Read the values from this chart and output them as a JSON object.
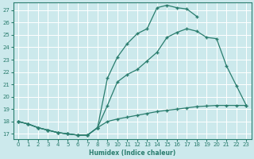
{
  "xlabel": "Humidex (Indice chaleur)",
  "bg_color": "#cce9ec",
  "grid_color": "#ffffff",
  "line_color": "#2a7d6e",
  "xlim": [
    -0.5,
    23.5
  ],
  "ylim": [
    16.6,
    27.6
  ],
  "xticks": [
    0,
    1,
    2,
    3,
    4,
    5,
    6,
    7,
    8,
    9,
    10,
    11,
    12,
    13,
    14,
    15,
    16,
    17,
    18,
    19,
    20,
    21,
    22,
    23
  ],
  "yticks": [
    17,
    18,
    19,
    20,
    21,
    22,
    23,
    24,
    25,
    26,
    27
  ],
  "line1": {
    "x": [
      0,
      1,
      2,
      3,
      4,
      5,
      6,
      7,
      8,
      9,
      10,
      11,
      12,
      13,
      14,
      15,
      16,
      17,
      18
    ],
    "y": [
      18.0,
      17.8,
      17.5,
      17.3,
      17.1,
      17.0,
      16.9,
      16.9,
      17.5,
      21.5,
      23.2,
      24.3,
      25.1,
      25.5,
      27.2,
      27.4,
      27.2,
      27.1,
      26.5
    ]
  },
  "line2": {
    "x": [
      0,
      1,
      2,
      3,
      4,
      5,
      6,
      7,
      8,
      9,
      10,
      11,
      12,
      13,
      14,
      15,
      16,
      17,
      18,
      19,
      20,
      21,
      22,
      23
    ],
    "y": [
      18.0,
      17.8,
      17.5,
      17.3,
      17.1,
      17.0,
      16.9,
      16.9,
      17.5,
      19.3,
      21.2,
      21.8,
      22.2,
      22.9,
      23.6,
      24.8,
      25.2,
      25.5,
      25.3,
      24.8,
      24.7,
      22.5,
      20.9,
      19.3
    ]
  },
  "line3": {
    "x": [
      0,
      1,
      2,
      3,
      4,
      5,
      6,
      7,
      8,
      9,
      10,
      11,
      12,
      13,
      14,
      15,
      16,
      17,
      18,
      19,
      20,
      21,
      22,
      23
    ],
    "y": [
      18.0,
      17.8,
      17.5,
      17.3,
      17.1,
      17.0,
      16.9,
      16.9,
      17.5,
      18.0,
      18.2,
      18.35,
      18.5,
      18.65,
      18.8,
      18.9,
      19.0,
      19.1,
      19.2,
      19.25,
      19.3,
      19.3,
      19.3,
      19.3
    ]
  }
}
